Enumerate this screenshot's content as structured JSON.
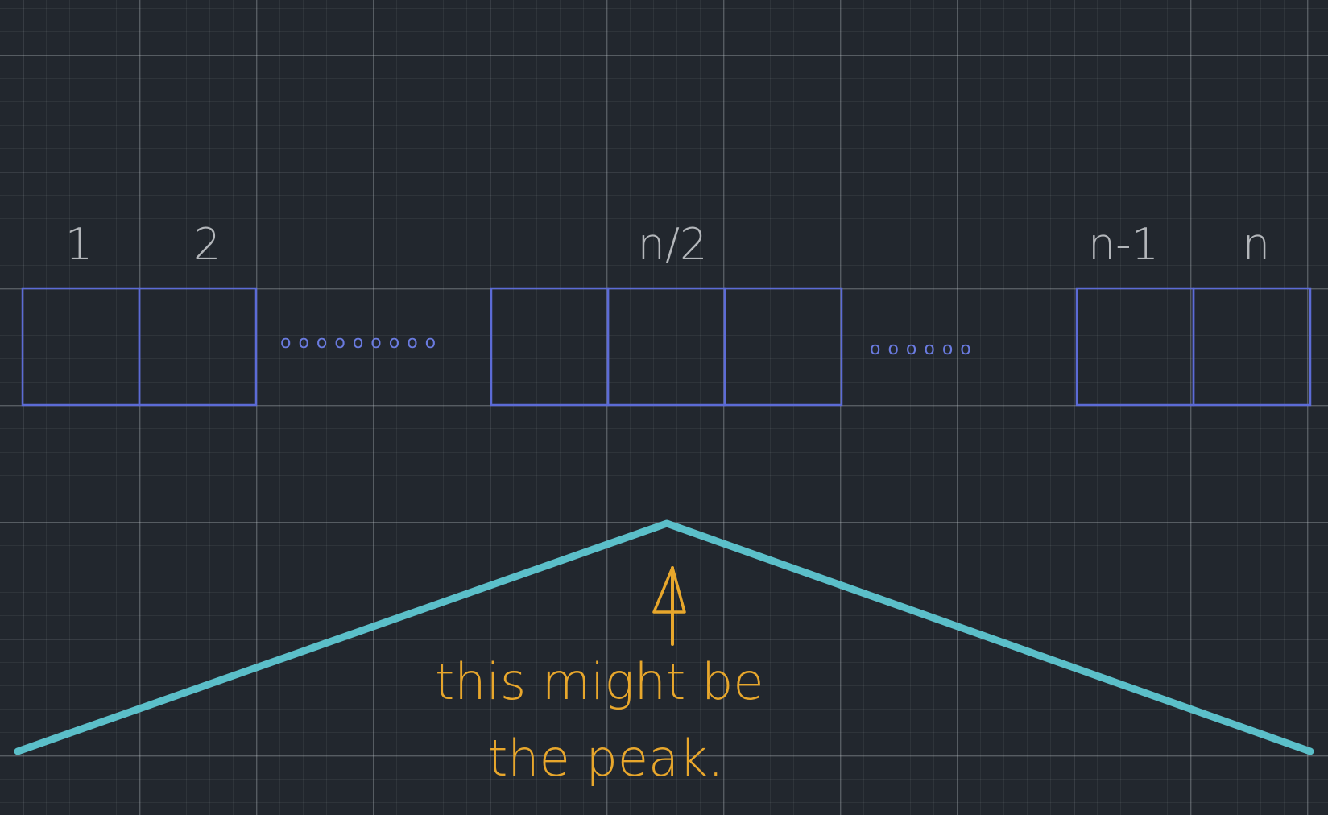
{
  "diagram": {
    "index_labels": {
      "first": "1",
      "second": "2",
      "middle": "n/2",
      "second_last": "n-1",
      "last": "n"
    },
    "ellipsis_left": "ooooooooo",
    "ellipsis_right": "oooooo",
    "annotation": {
      "line1": "this might be",
      "line2": "the peak."
    },
    "colors": {
      "background": "#22272e",
      "cells": "#5c6bd6",
      "index_labels": "#b3b6ba",
      "peak_line": "#5bbfc9",
      "annotation": "#e8a72c"
    }
  }
}
